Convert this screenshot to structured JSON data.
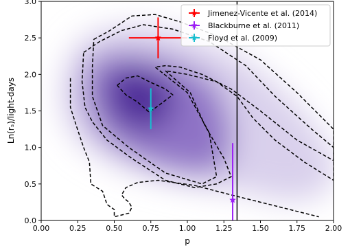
{
  "chart_data": {
    "type": "scatter",
    "xlabel": "p",
    "ylabel": "Ln(rₛ)/light-days",
    "xlim": [
      0.0,
      2.0
    ],
    "ylim": [
      0.0,
      3.0
    ],
    "xticks": [
      "0.00",
      "0.25",
      "0.50",
      "0.75",
      "1.00",
      "1.25",
      "1.50",
      "1.75",
      "2.00"
    ],
    "yticks": [
      "0.0",
      "0.5",
      "1.0",
      "1.5",
      "2.0",
      "2.5",
      "3.0"
    ],
    "grid": false,
    "legend_position": "top-right",
    "background": "2D posterior density (purple), darkest near p=0.6, Ln(r)=1.8",
    "vertical_line": {
      "x": 1.34,
      "color": "#000000"
    },
    "series": [
      {
        "name": "Jimenez-Vicente et al. (2014)",
        "color": "#ff0000",
        "x": 0.8,
        "y": 2.5,
        "xerr": [
          0.2,
          0.2
        ],
        "yerr": [
          0.28,
          0.28
        ]
      },
      {
        "name": "Blackburne et al. (2011)",
        "color": "#9b1ff5",
        "x": 1.31,
        "y": 0.28,
        "xerr": [
          0,
          0
        ],
        "yerr": [
          0.28,
          0.78
        ]
      },
      {
        "name": "Floyd et al. (2009)",
        "color": "#17becf",
        "x": 0.75,
        "y": 1.53,
        "xerr": [
          0,
          0
        ],
        "yerr": [
          0.28,
          0.28
        ]
      }
    ],
    "contours": [
      [
        [
          0.36,
          2.48
        ],
        [
          0.47,
          2.6
        ],
        [
          0.62,
          2.8
        ],
        [
          0.78,
          2.82
        ],
        [
          0.95,
          2.72
        ],
        [
          1.2,
          2.53
        ],
        [
          1.5,
          2.2
        ],
        [
          1.75,
          1.75
        ],
        [
          2.0,
          1.25
        ],
        [
          2.0,
          0.82
        ],
        [
          1.75,
          1.1
        ],
        [
          1.5,
          1.5
        ],
        [
          1.3,
          1.8
        ],
        [
          1.1,
          2.0
        ],
        [
          0.95,
          2.1
        ],
        [
          0.85,
          2.12
        ],
        [
          0.78,
          2.1
        ],
        [
          1.0,
          1.75
        ],
        [
          1.15,
          1.2
        ],
        [
          1.2,
          0.6
        ],
        [
          1.1,
          0.5
        ],
        [
          0.85,
          0.65
        ],
        [
          0.6,
          1.0
        ],
        [
          0.42,
          1.3
        ],
        [
          0.35,
          1.7
        ],
        [
          0.35,
          2.1
        ],
        [
          0.36,
          2.48
        ]
      ],
      [
        [
          0.29,
          2.3
        ],
        [
          0.4,
          2.45
        ],
        [
          0.55,
          2.6
        ],
        [
          0.7,
          2.68
        ],
        [
          0.9,
          2.62
        ],
        [
          1.15,
          2.45
        ],
        [
          1.4,
          2.12
        ],
        [
          1.6,
          1.7
        ],
        [
          1.85,
          1.25
        ],
        [
          2.0,
          1.0
        ],
        [
          2.0,
          0.55
        ],
        [
          1.8,
          0.8
        ],
        [
          1.6,
          1.1
        ],
        [
          1.45,
          1.4
        ],
        [
          1.34,
          1.7
        ],
        [
          1.2,
          1.9
        ],
        [
          1.0,
          2.0
        ],
        [
          0.85,
          2.05
        ],
        [
          1.02,
          1.75
        ],
        [
          1.12,
          1.3
        ],
        [
          1.25,
          0.85
        ],
        [
          1.3,
          0.6
        ],
        [
          1.2,
          0.5
        ],
        [
          1.05,
          0.45
        ],
        [
          0.85,
          0.55
        ],
        [
          0.62,
          0.85
        ],
        [
          0.45,
          1.1
        ],
        [
          0.35,
          1.35
        ],
        [
          0.3,
          1.55
        ],
        [
          0.28,
          1.9
        ],
        [
          0.29,
          2.3
        ]
      ],
      [
        [
          0.52,
          1.85
        ],
        [
          0.58,
          1.95
        ],
        [
          0.66,
          1.98
        ],
        [
          0.74,
          1.9
        ],
        [
          0.85,
          1.8
        ],
        [
          0.9,
          1.72
        ],
        [
          0.82,
          1.6
        ],
        [
          0.74,
          1.48
        ],
        [
          0.66,
          1.62
        ],
        [
          0.58,
          1.72
        ],
        [
          0.52,
          1.85
        ]
      ],
      [
        [
          0.2,
          1.95
        ],
        [
          0.2,
          1.55
        ],
        [
          0.24,
          1.3
        ],
        [
          0.29,
          1.0
        ],
        [
          0.33,
          0.8
        ],
        [
          0.34,
          0.5
        ],
        [
          0.42,
          0.4
        ],
        [
          0.45,
          0.22
        ],
        [
          0.5,
          0.15
        ],
        [
          0.5,
          0.05
        ],
        [
          0.6,
          0.1
        ],
        [
          0.62,
          0.18
        ],
        [
          0.6,
          0.25
        ],
        [
          0.57,
          0.3
        ],
        [
          0.55,
          0.35
        ],
        [
          0.58,
          0.45
        ],
        [
          0.66,
          0.52
        ],
        [
          0.8,
          0.55
        ],
        [
          1.05,
          0.48
        ],
        [
          1.3,
          0.35
        ],
        [
          1.6,
          0.2
        ],
        [
          1.9,
          0.05
        ]
      ]
    ]
  }
}
